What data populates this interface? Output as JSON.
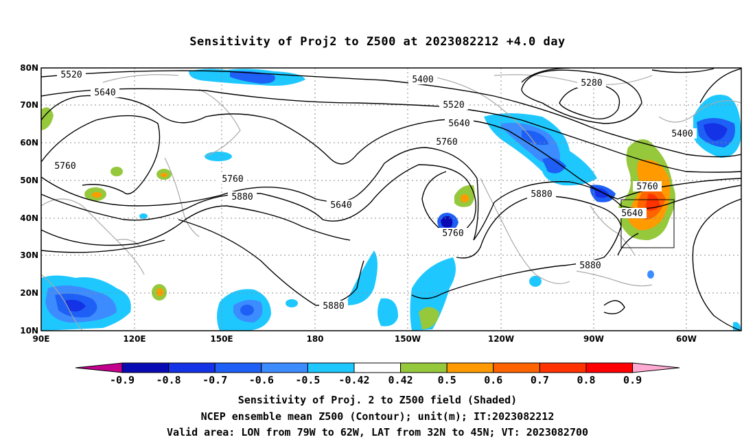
{
  "title": "Sensitivity of Proj2 to Z500 at 2023082212 +4.0 day",
  "map": {
    "lat_labels": [
      "80N",
      "70N",
      "60N",
      "50N",
      "40N",
      "30N",
      "20N",
      "10N"
    ],
    "lon_labels": [
      "90E",
      "120E",
      "150E",
      "180",
      "150W",
      "120W",
      "90W",
      "60W"
    ],
    "projection": "cylindrical",
    "extent": {
      "lon": [
        "90E",
        "50W"
      ],
      "lat": [
        "10N",
        "80N"
      ]
    },
    "valid_area_box": {
      "lon": [
        "79W",
        "62W"
      ],
      "lat": [
        "32N",
        "45N"
      ]
    },
    "contour_labels": [
      "5520",
      "5640",
      "5760",
      "5400",
      "5520",
      "5640",
      "5760",
      "5280",
      "5400",
      "5760",
      "5880",
      "5640",
      "5760",
      "5880",
      "5640",
      "5760",
      "5880",
      "5880"
    ]
  },
  "colorbar": {
    "labels": [
      "-0.9",
      "-0.8",
      "-0.7",
      "-0.6",
      "-0.5",
      "-0.42",
      "0.42",
      "0.5",
      "0.6",
      "0.7",
      "0.8",
      "0.9"
    ],
    "colors": [
      "#c2008c",
      "#0a0ab4",
      "#1432e6",
      "#1e5ff5",
      "#3c8cff",
      "#1ec8ff",
      "#ffffff",
      "#96c83c",
      "#ff9b00",
      "#ff6400",
      "#ff3200",
      "#ff0000",
      "#ffaad2"
    ]
  },
  "footer": {
    "line1": "Sensitivity of Proj. 2 to Z500 field (Shaded)",
    "line2": "NCEP ensemble mean Z500 (Contour); unit(m); IT:2023082212",
    "line3": "Valid area: LON from 79W to 62W, LAT from 32N to 45N; VT: 2023082700"
  }
}
